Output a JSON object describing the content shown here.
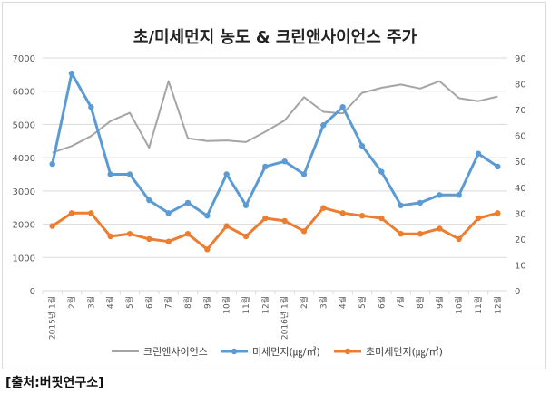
{
  "chart_data": {
    "type": "line",
    "title": "초/미세먼지 농도 & 크린앤사이언스 주가",
    "categories": [
      "2015년 1월",
      "2월",
      "3월",
      "4월",
      "5월",
      "6월",
      "7월",
      "8월",
      "9월",
      "10월",
      "11월",
      "12월",
      "2016년 1월",
      "2월",
      "3월",
      "4월",
      "5월",
      "6월",
      "7월",
      "8월",
      "9월",
      "10월",
      "11월",
      "12월"
    ],
    "y_left": {
      "min": 0,
      "max": 7000,
      "ticks": [
        0,
        1000,
        2000,
        3000,
        4000,
        5000,
        6000,
        7000
      ]
    },
    "y_right": {
      "min": 0,
      "max": 90,
      "ticks": [
        0,
        10,
        20,
        30,
        40,
        50,
        60,
        70,
        80,
        90
      ]
    },
    "series": [
      {
        "name": "크린앤사이언스",
        "axis": "left",
        "color": "#a5a5a5",
        "marker": false,
        "values": [
          4150,
          4350,
          4650,
          5100,
          5350,
          4300,
          6300,
          4580,
          4500,
          4520,
          4470,
          4780,
          5120,
          5820,
          5380,
          5330,
          5950,
          6100,
          6200,
          6080,
          6300,
          5790,
          5700,
          5840
        ]
      },
      {
        "name": "미세먼지(㎍/㎥)",
        "axis": "right",
        "color": "#5b9bd5",
        "marker": true,
        "values": [
          49,
          84,
          71,
          45,
          45,
          35,
          30,
          34,
          29,
          45,
          33,
          48,
          50,
          45,
          64,
          71,
          56,
          46,
          33,
          34,
          37,
          37,
          53,
          48
        ]
      },
      {
        "name": "초미세먼지(㎍/㎥)",
        "axis": "right",
        "color": "#ed7d31",
        "marker": true,
        "values": [
          25,
          30,
          30,
          21,
          22,
          20,
          19,
          22,
          16,
          25,
          21,
          28,
          27,
          23,
          32,
          30,
          29,
          28,
          22,
          22,
          24,
          20,
          28,
          30
        ]
      }
    ],
    "legend_position": "bottom",
    "grid": true
  },
  "source_note": "[출처:버핏연구소]"
}
